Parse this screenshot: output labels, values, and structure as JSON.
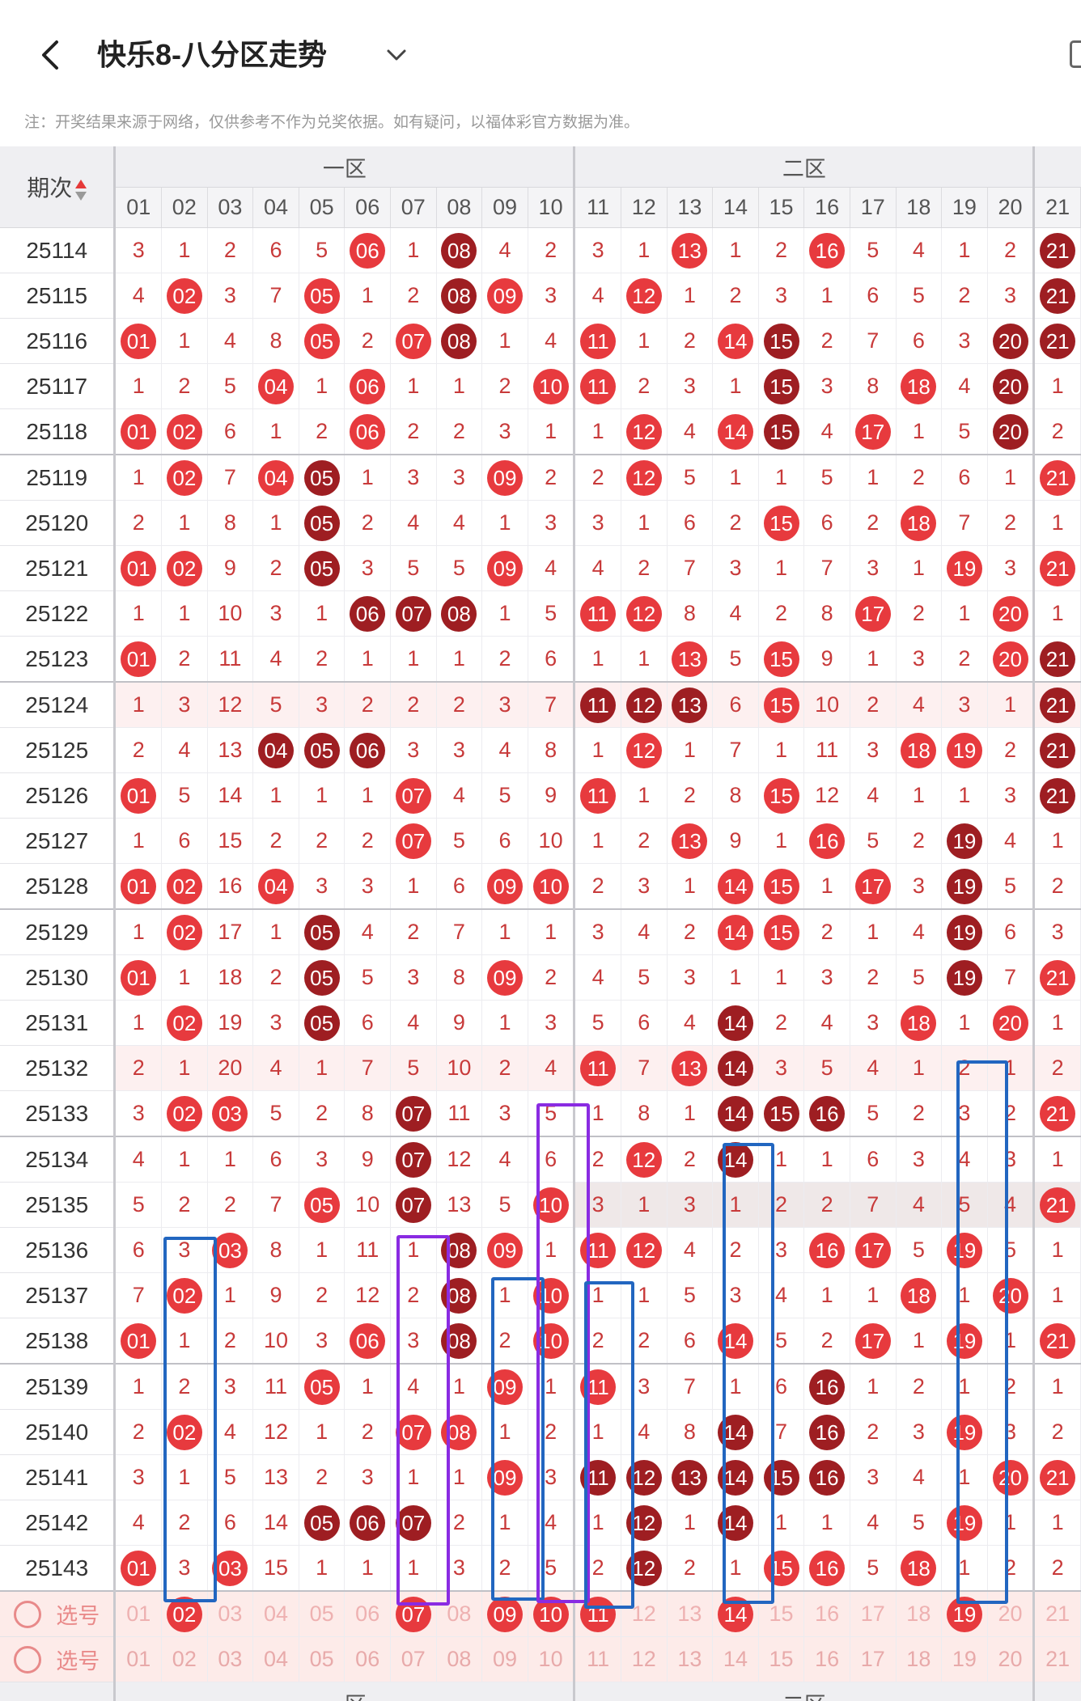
{
  "header": {
    "title": "快乐8-八分区走势"
  },
  "notice": "注：开奖结果来源于网络，仅供参考不作为兑奖依据。如有疑问，以福体彩官方数据为准。",
  "table": {
    "period_header": "期次",
    "zones": [
      "一区",
      "二区"
    ],
    "columns": [
      "01",
      "02",
      "03",
      "04",
      "05",
      "06",
      "07",
      "08",
      "09",
      "10",
      "11",
      "12",
      "13",
      "14",
      "15",
      "16",
      "17",
      "18",
      "19",
      "20",
      "21"
    ],
    "rows": [
      {
        "period": "25114",
        "cells": [
          "3",
          "1",
          "2",
          "6",
          "5",
          "r06",
          "1",
          "d08",
          "4",
          "2",
          "3",
          "1",
          "r13",
          "1",
          "2",
          "r16",
          "5",
          "4",
          "1",
          "2",
          "d21"
        ]
      },
      {
        "period": "25115",
        "cells": [
          "4",
          "r02",
          "3",
          "7",
          "r05",
          "1",
          "2",
          "d08",
          "r09",
          "3",
          "4",
          "r12",
          "1",
          "2",
          "3",
          "1",
          "6",
          "5",
          "2",
          "3",
          "d21"
        ]
      },
      {
        "period": "25116",
        "cells": [
          "r01",
          "1",
          "4",
          "8",
          "r05",
          "2",
          "r07",
          "d08",
          "1",
          "4",
          "r11",
          "1",
          "2",
          "r14",
          "d15",
          "2",
          "7",
          "6",
          "3",
          "d20",
          "d21"
        ]
      },
      {
        "period": "25117",
        "cells": [
          "1",
          "2",
          "5",
          "r04",
          "1",
          "r06",
          "1",
          "1",
          "2",
          "r10",
          "r11",
          "2",
          "3",
          "1",
          "d15",
          "3",
          "8",
          "r18",
          "4",
          "d20",
          "1"
        ]
      },
      {
        "period": "25118",
        "cells": [
          "r01",
          "r02",
          "6",
          "1",
          "2",
          "r06",
          "2",
          "2",
          "3",
          "1",
          "1",
          "r12",
          "4",
          "r14",
          "d15",
          "4",
          "r17",
          "1",
          "5",
          "d20",
          "2"
        ]
      },
      {
        "period": "25119",
        "cells": [
          "1",
          "r02",
          "7",
          "r04",
          "d05",
          "1",
          "3",
          "3",
          "r09",
          "2",
          "2",
          "r12",
          "5",
          "1",
          "1",
          "5",
          "1",
          "2",
          "6",
          "1",
          "r21"
        ]
      },
      {
        "period": "25120",
        "cells": [
          "2",
          "1",
          "8",
          "1",
          "d05",
          "2",
          "4",
          "4",
          "1",
          "3",
          "3",
          "1",
          "6",
          "2",
          "r15",
          "6",
          "2",
          "r18",
          "7",
          "2",
          "1"
        ]
      },
      {
        "period": "25121",
        "cells": [
          "r01",
          "r02",
          "9",
          "2",
          "d05",
          "3",
          "5",
          "5",
          "r09",
          "4",
          "4",
          "2",
          "7",
          "3",
          "1",
          "7",
          "3",
          "1",
          "r19",
          "3",
          "r21"
        ]
      },
      {
        "period": "25122",
        "cells": [
          "1",
          "1",
          "10",
          "3",
          "1",
          "d06",
          "d07",
          "d08",
          "1",
          "5",
          "r11",
          "r12",
          "8",
          "4",
          "2",
          "8",
          "r17",
          "2",
          "1",
          "r20",
          "1"
        ]
      },
      {
        "period": "25123",
        "cells": [
          "r01",
          "2",
          "11",
          "4",
          "2",
          "1",
          "1",
          "1",
          "2",
          "6",
          "1",
          "1",
          "r13",
          "5",
          "r15",
          "9",
          "1",
          "3",
          "2",
          "r20",
          "d21"
        ]
      },
      {
        "period": "25124",
        "cells": [
          "1",
          "3",
          "12",
          "5",
          "3",
          "2",
          "2",
          "2",
          "3",
          "7",
          "d11",
          "d12",
          "d13",
          "6",
          "r15",
          "10",
          "2",
          "4",
          "3",
          "1",
          "d21"
        ]
      },
      {
        "period": "25125",
        "cells": [
          "2",
          "4",
          "13",
          "d04",
          "d05",
          "d06",
          "3",
          "3",
          "4",
          "8",
          "1",
          "r12",
          "1",
          "7",
          "1",
          "11",
          "3",
          "r18",
          "r19",
          "2",
          "d21"
        ]
      },
      {
        "period": "25126",
        "cells": [
          "r01",
          "5",
          "14",
          "1",
          "1",
          "1",
          "r07",
          "4",
          "5",
          "9",
          "r11",
          "1",
          "2",
          "8",
          "r15",
          "12",
          "4",
          "1",
          "1",
          "3",
          "d21"
        ]
      },
      {
        "period": "25127",
        "cells": [
          "1",
          "6",
          "15",
          "2",
          "2",
          "2",
          "r07",
          "5",
          "6",
          "10",
          "1",
          "2",
          "r13",
          "9",
          "1",
          "r16",
          "5",
          "2",
          "d19",
          "4",
          "1"
        ]
      },
      {
        "period": "25128",
        "cells": [
          "r01",
          "r02",
          "16",
          "r04",
          "3",
          "3",
          "1",
          "6",
          "r09",
          "r10",
          "2",
          "3",
          "1",
          "r14",
          "r15",
          "1",
          "r17",
          "3",
          "d19",
          "5",
          "2"
        ]
      },
      {
        "period": "25129",
        "cells": [
          "1",
          "r02",
          "17",
          "1",
          "d05",
          "4",
          "2",
          "7",
          "1",
          "1",
          "3",
          "4",
          "2",
          "r14",
          "r15",
          "2",
          "1",
          "4",
          "d19",
          "6",
          "3"
        ]
      },
      {
        "period": "25130",
        "cells": [
          "r01",
          "1",
          "18",
          "2",
          "d05",
          "5",
          "3",
          "8",
          "r09",
          "2",
          "4",
          "5",
          "3",
          "1",
          "1",
          "3",
          "2",
          "5",
          "d19",
          "7",
          "r21"
        ]
      },
      {
        "period": "25131",
        "cells": [
          "1",
          "r02",
          "19",
          "3",
          "d05",
          "6",
          "4",
          "9",
          "1",
          "3",
          "5",
          "6",
          "4",
          "d14",
          "2",
          "4",
          "3",
          "r18",
          "1",
          "r20",
          "1"
        ]
      },
      {
        "period": "25132",
        "cells": [
          "2",
          "1",
          "20",
          "4",
          "1",
          "7",
          "5",
          "10",
          "2",
          "4",
          "r11",
          "7",
          "r13",
          "d14",
          "3",
          "5",
          "4",
          "1",
          "2",
          "1",
          "2"
        ]
      },
      {
        "period": "25133",
        "cells": [
          "3",
          "r02",
          "r03",
          "5",
          "2",
          "8",
          "d07",
          "11",
          "3",
          "5",
          "1",
          "8",
          "1",
          "d14",
          "d15",
          "d16",
          "5",
          "2",
          "3",
          "2",
          "r21"
        ]
      },
      {
        "period": "25134",
        "cells": [
          "4",
          "1",
          "1",
          "6",
          "3",
          "9",
          "d07",
          "12",
          "4",
          "6",
          "2",
          "r12",
          "2",
          "d14",
          "1",
          "1",
          "6",
          "3",
          "4",
          "3",
          "1"
        ]
      },
      {
        "period": "25135",
        "cells": [
          "5",
          "2",
          "2",
          "7",
          "r05",
          "10",
          "d07",
          "13",
          "5",
          "r10",
          "3",
          "1",
          "3",
          "1",
          "2",
          "2",
          "7",
          "4",
          "5",
          "4",
          "r21"
        ]
      },
      {
        "period": "25136",
        "cells": [
          "6",
          "3",
          "r03",
          "8",
          "1",
          "11",
          "1",
          "d08",
          "r09",
          "1",
          "r11",
          "r12",
          "4",
          "2",
          "3",
          "r16",
          "r17",
          "5",
          "r19",
          "5",
          "1"
        ]
      },
      {
        "period": "25137",
        "cells": [
          "7",
          "r02",
          "1",
          "9",
          "2",
          "12",
          "2",
          "d08",
          "1",
          "r10",
          "1",
          "1",
          "5",
          "3",
          "4",
          "1",
          "1",
          "r18",
          "1",
          "r20",
          "1"
        ]
      },
      {
        "period": "25138",
        "cells": [
          "r01",
          "1",
          "2",
          "10",
          "3",
          "r06",
          "3",
          "d08",
          "2",
          "r10",
          "2",
          "2",
          "6",
          "r14",
          "5",
          "2",
          "r17",
          "1",
          "r19",
          "1",
          "r21"
        ]
      },
      {
        "period": "25139",
        "cells": [
          "1",
          "2",
          "3",
          "11",
          "r05",
          "1",
          "4",
          "1",
          "r09",
          "1",
          "r11",
          "3",
          "7",
          "1",
          "6",
          "d16",
          "1",
          "2",
          "1",
          "2",
          "1"
        ]
      },
      {
        "period": "25140",
        "cells": [
          "2",
          "r02",
          "4",
          "12",
          "1",
          "2",
          "r07",
          "r08",
          "1",
          "2",
          "1",
          "4",
          "8",
          "d14",
          "7",
          "d16",
          "2",
          "3",
          "r19",
          "3",
          "2"
        ]
      },
      {
        "period": "25141",
        "cells": [
          "3",
          "1",
          "5",
          "13",
          "2",
          "3",
          "1",
          "1",
          "r09",
          "3",
          "d11",
          "d12",
          "d13",
          "d14",
          "d15",
          "d16",
          "3",
          "4",
          "1",
          "r20",
          "r21"
        ]
      },
      {
        "period": "25142",
        "cells": [
          "4",
          "2",
          "6",
          "14",
          "d05",
          "d06",
          "d07",
          "2",
          "1",
          "4",
          "1",
          "d12",
          "1",
          "d14",
          "1",
          "1",
          "4",
          "5",
          "r19",
          "1",
          "1"
        ]
      },
      {
        "period": "25143",
        "cells": [
          "r01",
          "3",
          "r03",
          "15",
          "1",
          "1",
          "1",
          "3",
          "2",
          "5",
          "2",
          "d12",
          "2",
          "1",
          "r15",
          "r16",
          "5",
          "r18",
          "1",
          "2",
          "2"
        ]
      }
    ],
    "select_row_1": {
      "label": "选号",
      "cells": [
        "01",
        "r02",
        "03",
        "04",
        "05",
        "06",
        "r07",
        "08",
        "r09",
        "r10",
        "r11",
        "12",
        "13",
        "r14",
        "15",
        "16",
        "17",
        "18",
        "r19",
        "20",
        "21"
      ]
    },
    "select_row_2": {
      "label": "选号",
      "cells": [
        "01",
        "02",
        "03",
        "04",
        "05",
        "06",
        "07",
        "08",
        "09",
        "10",
        "11",
        "12",
        "13",
        "14",
        "15",
        "16",
        "17",
        "18",
        "19",
        "20",
        "21"
      ]
    },
    "footer_zones": [
      "一区",
      "二区"
    ],
    "footer_period": "-"
  },
  "colors": {
    "ball_red": "#e73a3e",
    "ball_dark": "#9e1e22",
    "frame_blue": "#2266c0",
    "frame_purple": "#8a2be2"
  }
}
